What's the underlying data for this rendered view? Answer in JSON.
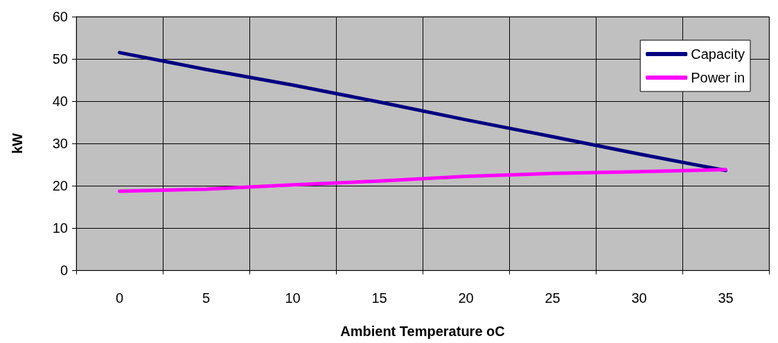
{
  "chart_data": {
    "type": "line",
    "xlabel": "Ambient Temperature oC",
    "ylabel": "kW",
    "categories": [
      "0",
      "5",
      "10",
      "15",
      "20",
      "25",
      "30",
      "35"
    ],
    "series": [
      {
        "name": "Capacity",
        "color": "#000080",
        "values": [
          51.5,
          47.5,
          43.8,
          39.8,
          35.6,
          31.6,
          27.5,
          23.6
        ]
      },
      {
        "name": "Power in",
        "color": "#ff00ff",
        "values": [
          18.7,
          19.2,
          20.2,
          21.1,
          22.2,
          22.9,
          23.3,
          23.8
        ]
      }
    ],
    "ylim": [
      0,
      60
    ],
    "yticks": [
      0,
      10,
      20,
      30,
      40,
      50,
      60
    ],
    "grid": true,
    "legend": "top right",
    "marker": "none",
    "line_style": "solid"
  }
}
